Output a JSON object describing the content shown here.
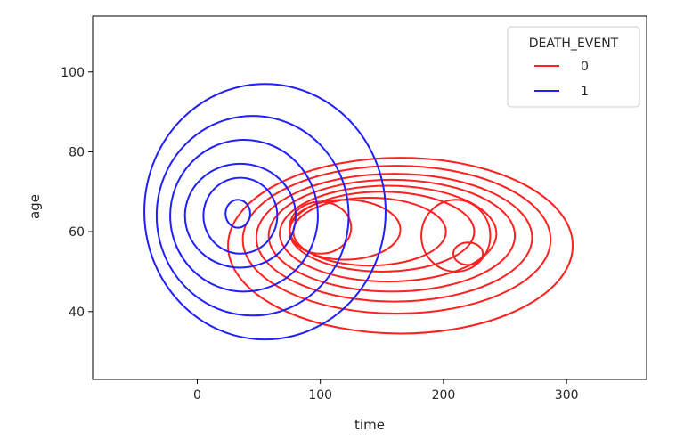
{
  "chart_data": {
    "type": "kde-contour",
    "title": "",
    "xlabel": "time",
    "ylabel": "age",
    "xlim": [
      -85,
      365
    ],
    "ylim": [
      23,
      114
    ],
    "x_ticks": [
      0,
      100,
      200,
      300
    ],
    "y_ticks": [
      40,
      60,
      80,
      100
    ],
    "grid": false,
    "legend": {
      "title": "DEATH_EVENT",
      "placement": "top-right",
      "entries": [
        {
          "label": "0",
          "color": "#ff2020"
        },
        {
          "label": "1",
          "color": "#2020ff"
        }
      ]
    },
    "series": [
      {
        "name": "0",
        "color": "#ff2020",
        "levels": [
          {
            "cx": 165,
            "cy": 56.5,
            "rx": 140,
            "ry": 22
          },
          {
            "cx": 162,
            "cy": 58,
            "rx": 125,
            "ry": 18.5
          },
          {
            "cx": 160,
            "cy": 58.5,
            "rx": 112,
            "ry": 16
          },
          {
            "cx": 158,
            "cy": 59,
            "rx": 100,
            "ry": 14
          },
          {
            "cx": 155,
            "cy": 59.5,
            "rx": 88,
            "ry": 12
          },
          {
            "cx": 150,
            "cy": 60,
            "rx": 75,
            "ry": 10
          },
          {
            "cx": 140,
            "cy": 60,
            "rx": 62,
            "ry": 8.5
          },
          {
            "cx": 120,
            "cy": 60.5,
            "rx": 45,
            "ry": 7.5
          },
          {
            "cx": 100,
            "cy": 61,
            "rx": 25,
            "ry": 6.5
          },
          {
            "cx": 210,
            "cy": 59,
            "rx": 28,
            "ry": 9
          },
          {
            "cx": 220,
            "cy": 54.5,
            "rx": 12,
            "ry": 2.8
          }
        ]
      },
      {
        "name": "1",
        "color": "#2020ff",
        "levels": [
          {
            "cx": 55,
            "cy": 65,
            "rx": 98,
            "ry": 32
          },
          {
            "cx": 45,
            "cy": 64,
            "rx": 78,
            "ry": 25
          },
          {
            "cx": 38,
            "cy": 64,
            "rx": 60,
            "ry": 19
          },
          {
            "cx": 35,
            "cy": 64,
            "rx": 45,
            "ry": 13
          },
          {
            "cx": 35,
            "cy": 64,
            "rx": 30,
            "ry": 9.5
          },
          {
            "cx": 33,
            "cy": 64.5,
            "rx": 10,
            "ry": 3.5
          }
        ]
      }
    ]
  }
}
